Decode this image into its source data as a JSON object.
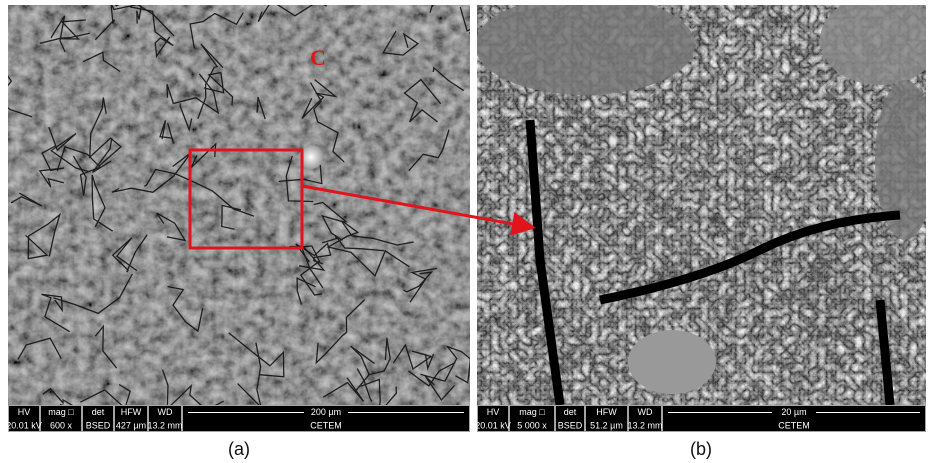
{
  "panels": [
    {
      "label": "(a)",
      "marker": "C",
      "info_bar": {
        "headers": [
          "HV",
          "mag □",
          "det",
          "HFW",
          "WD"
        ],
        "values": [
          "20.01 kV",
          "600 x",
          "BSED",
          "427 µm",
          "13.2 mm"
        ],
        "scale_bar": "200 µm",
        "lab": "CETEM"
      }
    },
    {
      "label": "(b)",
      "info_bar": {
        "headers": [
          "HV",
          "mag □",
          "det",
          "HFW",
          "WD"
        ],
        "values": [
          "20.01 kV",
          "5 000 x",
          "BSED",
          "51.2 µm",
          "13.2 mm"
        ],
        "scale_bar": "20 µm",
        "lab": "CETEM"
      }
    }
  ]
}
